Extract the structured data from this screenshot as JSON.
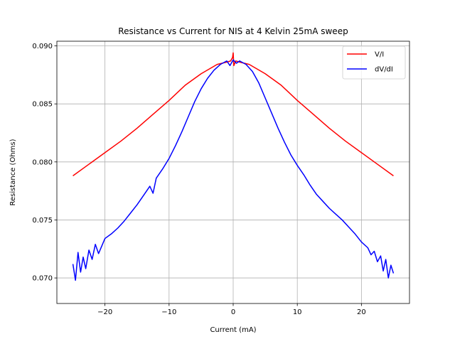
{
  "chart_data": {
    "type": "line",
    "title": "Resistance vs Current for NIS at 4 Kelvin 25mA sweep",
    "xlabel": "Current (mA)",
    "ylabel": "Resistance (Ohms)",
    "xlim": [
      -27.5,
      27.5
    ],
    "ylim": [
      0.0678,
      0.0904
    ],
    "xticks": [
      -20,
      -10,
      0,
      10,
      20
    ],
    "xtick_labels": [
      "−20",
      "−10",
      "0",
      "10",
      "20"
    ],
    "yticks": [
      0.07,
      0.075,
      0.08,
      0.085,
      0.09
    ],
    "ytick_labels": [
      "0.070",
      "0.075",
      "0.080",
      "0.085",
      "0.090"
    ],
    "grid": true,
    "legend_position": "top-right",
    "series": [
      {
        "name": "V/I",
        "color": "#ff0000",
        "x": [
          -25,
          -22.5,
          -20,
          -17.5,
          -15,
          -12.5,
          -10,
          -7.5,
          -5,
          -2.5,
          -1,
          -0.4,
          -0.1,
          0,
          0.1,
          0.4,
          1,
          2.5,
          5,
          7.5,
          10,
          12.5,
          15,
          17.5,
          20,
          22.5,
          25
        ],
        "y": [
          0.0788,
          0.0798,
          0.0808,
          0.0818,
          0.0829,
          0.0841,
          0.0853,
          0.0866,
          0.0876,
          0.0884,
          0.0886,
          0.0887,
          0.089,
          0.0894,
          0.0883,
          0.0887,
          0.0886,
          0.0884,
          0.0876,
          0.0866,
          0.0853,
          0.0841,
          0.0829,
          0.0818,
          0.0808,
          0.0798,
          0.0788
        ]
      },
      {
        "name": "dV/dI",
        "color": "#0000ff",
        "x": [
          -25,
          -24.6,
          -24.2,
          -23.8,
          -23.4,
          -23,
          -22.5,
          -22,
          -21.5,
          -21,
          -20,
          -19,
          -18,
          -17,
          -16,
          -15,
          -14,
          -13,
          -12.5,
          -12,
          -11,
          -10,
          -9,
          -8,
          -7,
          -6,
          -5,
          -4,
          -3,
          -2,
          -1,
          -0.5,
          0,
          0.5,
          1,
          2,
          3,
          4,
          5,
          6,
          7,
          8,
          9,
          10,
          11,
          12,
          13,
          14,
          15,
          16,
          17,
          18,
          19,
          20,
          21,
          21.5,
          22,
          22.5,
          23,
          23.4,
          23.8,
          24.2,
          24.6,
          25
        ],
        "y": [
          0.0712,
          0.0698,
          0.0722,
          0.0705,
          0.0718,
          0.0708,
          0.0724,
          0.0716,
          0.0729,
          0.0721,
          0.0734,
          0.0738,
          0.0743,
          0.0749,
          0.0756,
          0.0763,
          0.0771,
          0.0779,
          0.0773,
          0.0786,
          0.0794,
          0.0803,
          0.0814,
          0.0826,
          0.0839,
          0.0852,
          0.0863,
          0.0872,
          0.0879,
          0.0884,
          0.0887,
          0.0883,
          0.0888,
          0.0885,
          0.0887,
          0.0884,
          0.0878,
          0.0868,
          0.0855,
          0.0842,
          0.0829,
          0.0817,
          0.0806,
          0.0797,
          0.0789,
          0.078,
          0.0772,
          0.0766,
          0.076,
          0.0755,
          0.075,
          0.0744,
          0.0738,
          0.0731,
          0.0726,
          0.072,
          0.0723,
          0.0714,
          0.0719,
          0.0706,
          0.0716,
          0.07,
          0.0711,
          0.0704
        ]
      }
    ]
  }
}
